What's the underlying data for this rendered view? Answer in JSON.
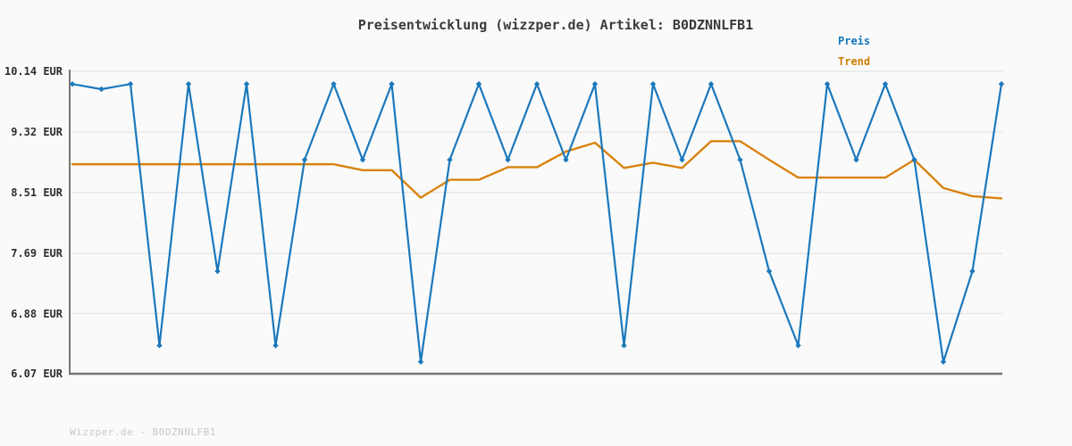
{
  "page": {
    "title": "Preisentwicklung (wizzper.de) Artikel: B0DZNNLFB1",
    "watermark": "Wizzper.de - B0DZNNLFB1"
  },
  "legend": {
    "items": [
      {
        "label": "Preis",
        "color": "#1176bd"
      },
      {
        "label": "Trend",
        "color": "#cc7d04"
      }
    ]
  },
  "y_axis": {
    "unit": "EUR",
    "tick_labels": [
      "10.14 EUR",
      "9.32 EUR",
      "8.51 EUR",
      "7.69 EUR",
      "6.88 EUR",
      "6.07 EUR"
    ],
    "tick_values": [
      10.14,
      9.32,
      8.51,
      7.69,
      6.88,
      6.07
    ]
  },
  "colors": {
    "background": "#fafafa",
    "gridline": "#e8e8e8",
    "axis": "#777777"
  },
  "chart_data": {
    "type": "line",
    "title": "Preisentwicklung (wizzper.de) Artikel: B0DZNNLFB1",
    "xlabel": "",
    "ylabel": "EUR",
    "ylim": [
      6.07,
      10.14
    ],
    "grid": true,
    "legend_position": "top-right",
    "x_tick_labels_visible": false,
    "x": [
      1,
      2,
      3,
      4,
      5,
      6,
      7,
      8,
      9,
      10,
      11,
      12,
      13,
      14,
      15,
      16,
      17,
      18,
      19,
      20,
      21,
      22,
      23,
      24,
      25,
      26,
      27,
      28,
      29,
      30,
      31,
      32,
      33
    ],
    "series": [
      {
        "name": "Preis",
        "color": "#1b78bc",
        "marker": "diamond",
        "values": [
          9.97,
          9.9,
          9.97,
          6.45,
          9.97,
          7.45,
          9.97,
          6.45,
          8.95,
          9.97,
          8.95,
          9.97,
          6.23,
          8.95,
          9.97,
          8.95,
          9.97,
          8.95,
          9.97,
          6.45,
          9.97,
          8.95,
          9.97,
          8.95,
          7.45,
          6.45,
          9.97,
          8.95,
          9.97,
          8.95,
          6.23,
          7.45,
          9.97
        ]
      },
      {
        "name": "Trend",
        "color": "#d9820f",
        "marker": "none",
        "values": [
          8.89,
          8.89,
          8.89,
          8.89,
          8.89,
          8.89,
          8.89,
          8.89,
          8.89,
          8.89,
          8.81,
          8.81,
          8.44,
          8.68,
          8.68,
          8.85,
          8.85,
          9.06,
          9.18,
          8.84,
          8.91,
          8.84,
          9.2,
          9.2,
          8.95,
          8.71,
          8.71,
          8.71,
          8.71,
          8.95,
          8.57,
          8.46,
          8.43
        ]
      }
    ]
  }
}
